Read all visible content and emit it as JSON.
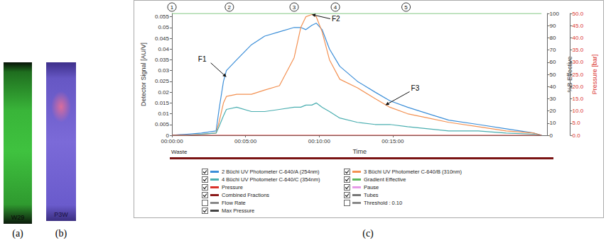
{
  "panels": [
    {
      "label": "(a)",
      "plate_text": "W29"
    },
    {
      "label": "(b)",
      "plate_text": "P3W"
    }
  ],
  "chart_label": "(c)",
  "chart_data": {
    "type": "line",
    "xlabel": "Time",
    "ylabel": "Detector Signal [AU/V]",
    "y2label": "%B Effective",
    "y3label": "Pressure [bar]",
    "x": [
      0,
      1,
      2,
      3,
      3.2,
      3.5,
      3.7,
      4.4,
      5.4,
      6.3,
      7.3,
      8.3,
      8.75,
      9.1,
      9.5,
      9.8,
      10.2,
      10.7,
      11.4,
      12.6,
      13.8,
      14.8,
      16,
      17.4,
      18.8,
      20.8,
      22.7,
      24.6,
      25.1
    ],
    "xlim": [
      0,
      25.5
    ],
    "xticks": [
      {
        "value": 0,
        "label": "00:00:00"
      },
      {
        "value": 5,
        "label": "00:05:00"
      },
      {
        "value": 10,
        "label": "00:10:00"
      },
      {
        "value": 15,
        "label": "00:15:00"
      }
    ],
    "ylim": [
      0,
      0.0565
    ],
    "yticks": [
      0,
      0.005,
      0.01,
      0.015,
      0.02,
      0.025,
      0.03,
      0.035,
      0.04,
      0.045,
      0.05,
      0.055
    ],
    "y2lim": [
      0,
      100
    ],
    "y2ticks": [
      0,
      10,
      20,
      30,
      40,
      50,
      60,
      70,
      80,
      90,
      100
    ],
    "y3lim": [
      0,
      50
    ],
    "y3ticks": [
      {
        "value": 0,
        "label": "0.0"
      },
      {
        "value": 5,
        "label": "5.0"
      },
      {
        "value": 10,
        "label": "10.0"
      },
      {
        "value": 15,
        "label": "15.0"
      },
      {
        "value": 20,
        "label": "20.0"
      },
      {
        "value": 25,
        "label": "25.0"
      },
      {
        "value": 30,
        "label": "30.0"
      },
      {
        "value": 35,
        "label": "35.0"
      },
      {
        "value": 40,
        "label": "40.0"
      },
      {
        "value": 45,
        "label": "45.0"
      },
      {
        "value": 50,
        "label": "50.0"
      }
    ],
    "grid": false,
    "legend": "bottom",
    "series": [
      {
        "name": "2 Büchi UV Photometer C-640/A (254nm)",
        "color": "#3b8ed8",
        "values": [
          0,
          0.0005,
          0.001,
          0.002,
          0.012,
          0.025,
          0.03,
          0.035,
          0.042,
          0.046,
          0.048,
          0.05,
          0.05,
          0.049,
          0.051,
          0.052,
          0.049,
          0.04,
          0.032,
          0.025,
          0.02,
          0.016,
          0.013,
          0.01,
          0.007,
          0.005,
          0.003,
          0.001,
          0
        ]
      },
      {
        "name": "3 Büchi UV Photometer C-640/B (310nm)",
        "color": "#f39152",
        "values": [
          0,
          0,
          0.0005,
          0.001,
          0.006,
          0.015,
          0.018,
          0.019,
          0.019,
          0.021,
          0.023,
          0.036,
          0.05,
          0.055,
          0.056,
          0.055,
          0.048,
          0.035,
          0.026,
          0.022,
          0.017,
          0.013,
          0.01,
          0.008,
          0.006,
          0.004,
          0.002,
          0.001,
          0
        ]
      },
      {
        "name": "4 Büchi UV Photometer C-640/C (354nm)",
        "color": "#4aaeb0",
        "values": [
          0,
          0,
          0.0005,
          0.001,
          0.004,
          0.009,
          0.012,
          0.013,
          0.011,
          0.011,
          0.012,
          0.013,
          0.013,
          0.014,
          0.014,
          0.015,
          0.013,
          0.011,
          0.008,
          0.006,
          0.005,
          0.005,
          0.004,
          0.003,
          0.002,
          0.002,
          0.001,
          0.0005,
          0
        ]
      },
      {
        "name": "Gradient Effective",
        "color": "#5cb85c",
        "axis": "y2",
        "values": [
          100,
          100,
          100,
          100,
          100,
          100,
          100,
          100,
          100,
          100,
          100,
          100,
          100,
          100,
          100,
          100,
          100,
          100,
          100,
          100,
          100,
          100,
          100,
          100,
          100,
          100,
          100,
          100,
          100
        ]
      },
      {
        "name": "Pressure",
        "color": "#d9322b",
        "axis": "y3",
        "values": [
          0,
          0,
          0,
          0,
          0,
          0,
          0,
          0,
          0,
          0,
          0,
          0,
          0,
          0,
          0,
          0,
          0,
          0,
          0,
          0,
          0,
          0,
          0,
          0,
          0,
          0,
          0,
          0,
          0
        ]
      }
    ],
    "phase_markers": [
      {
        "x": 0,
        "label": "1"
      },
      {
        "x": 3.9,
        "label": "2"
      },
      {
        "x": 8.3,
        "label": "3"
      },
      {
        "x": 11.1,
        "label": "4"
      },
      {
        "x": 15.9,
        "label": "5"
      }
    ],
    "annotations": [
      {
        "text": "F1",
        "x": 3.7,
        "y": 0.027
      },
      {
        "text": "F2",
        "x": 9.5,
        "y": 0.056
      },
      {
        "text": "F3",
        "x": 14.5,
        "y": 0.014
      }
    ],
    "fraction_track": "Waste",
    "legend_items": [
      {
        "label": "2 Büchi UV Photometer C-640/A (254nm)",
        "color": "#3b8ed8",
        "checked": true
      },
      {
        "label": "3 Büchi UV Photometer C-640/B (310nm)",
        "color": "#f39152",
        "checked": true
      },
      {
        "label": "4 Büchi UV Photometer C-640/C (354nm)",
        "color": "#4aaeb0",
        "checked": true
      },
      {
        "label": "Gradient Effective",
        "color": "#5cb85c",
        "checked": true
      },
      {
        "label": "Pressure",
        "color": "#d9322b",
        "checked": true
      },
      {
        "label": "Pause",
        "color": "#e59ae8",
        "checked": true
      },
      {
        "label": "Combined Fractions",
        "color": "#8b1a1a",
        "checked": true
      },
      {
        "label": "Tubes",
        "color": "#777777",
        "checked": true
      },
      {
        "label": "Flow Rate",
        "color": "#888888",
        "checked": false
      },
      {
        "label": "Threshold : 0.10",
        "color": "#888888",
        "checked": false
      },
      {
        "label": "Max Pressure",
        "color": "#444444",
        "checked": true
      }
    ]
  }
}
